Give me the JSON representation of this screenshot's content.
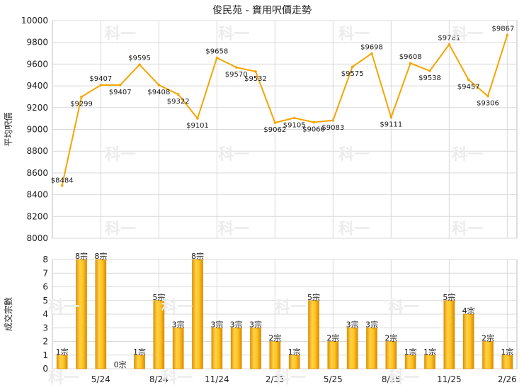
{
  "chart_data": [
    {
      "type": "line",
      "title": "俊民苑 - 實用呎價走勢",
      "ylabel": "平均呎價",
      "ylim": [
        8000,
        10000
      ],
      "yticks": [
        8000,
        8200,
        8400,
        8600,
        8800,
        9000,
        9200,
        9400,
        9600,
        9800,
        10000
      ],
      "grid": true,
      "color": "#f5a500",
      "values": [
        8484,
        9299,
        9407,
        9407,
        9595,
        9408,
        9322,
        9101,
        9658,
        9570,
        9532,
        9062,
        9105,
        9066,
        9083,
        9575,
        9698,
        9111,
        9608,
        9538,
        9781,
        9457,
        9306,
        9867
      ],
      "labels": [
        "$8484",
        "$9299",
        "$9407",
        "$9407",
        "$9595",
        "$9408",
        "$9322",
        "$9101",
        "$9658",
        "$9570",
        "$9532",
        "$9062",
        "$9105",
        "$9066",
        "$9083",
        "$9575",
        "$9698",
        "$9111",
        "$9608",
        "$9538",
        "$9781",
        "$9457",
        "$9306",
        "$9867"
      ]
    },
    {
      "type": "bar",
      "ylabel": "成交宗數",
      "ylim": [
        0,
        8
      ],
      "yticks": [
        0,
        1,
        2,
        3,
        4,
        5,
        6,
        7,
        8
      ],
      "grid": true,
      "color": "#f5a500",
      "values": [
        1,
        8,
        8,
        0,
        1,
        5,
        3,
        8,
        3,
        3,
        3,
        2,
        1,
        5,
        2,
        3,
        3,
        2,
        1,
        1,
        5,
        4,
        2,
        1
      ],
      "labels": [
        "1宗",
        "8宗",
        "8宗",
        "0宗",
        "1宗",
        "5宗",
        "3宗",
        "8宗",
        "3宗",
        "3宗",
        "3宗",
        "2宗",
        "1宗",
        "5宗",
        "2宗",
        "3宗",
        "3宗",
        "2宗",
        "1宗",
        "1宗",
        "5宗",
        "4宗",
        "2宗",
        "1宗"
      ],
      "xticks": [
        {
          "index": 2,
          "label": "5/24"
        },
        {
          "index": 5,
          "label": "8/24"
        },
        {
          "index": 8,
          "label": "11/24"
        },
        {
          "index": 11,
          "label": "2/25"
        },
        {
          "index": 14,
          "label": "5/25"
        },
        {
          "index": 17,
          "label": "8/25"
        },
        {
          "index": 20,
          "label": "11/25"
        },
        {
          "index": 23,
          "label": "2/26"
        }
      ]
    }
  ],
  "watermark": "科一"
}
